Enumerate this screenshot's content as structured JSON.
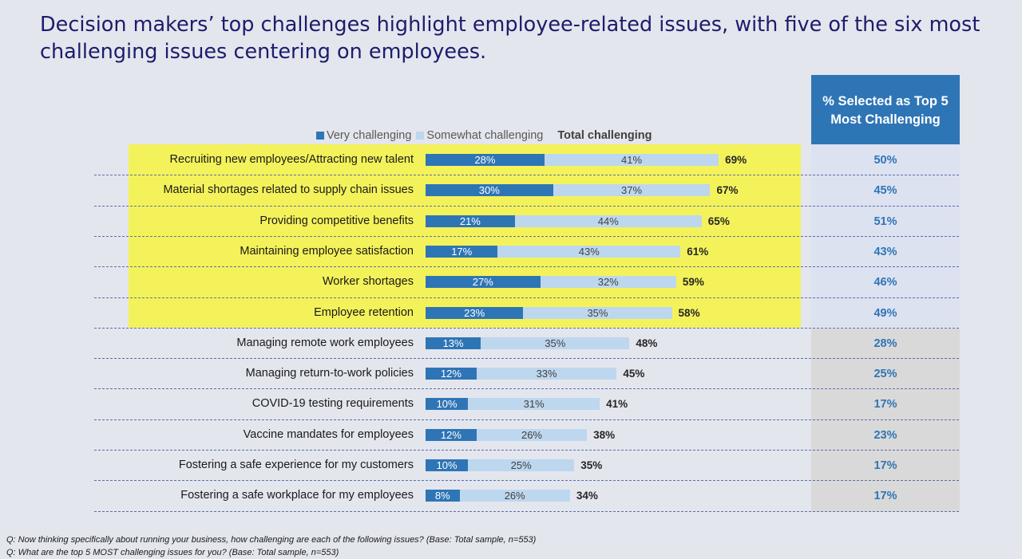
{
  "title": "Decision makers’ top challenges highlight employee-related issues, with five of the six most challenging issues centering on employees.",
  "right_header": "% Selected as Top 5\nMost Challenging",
  "colors": {
    "very": "#2e75b6",
    "somewhat": "#bdd7ee",
    "highlight": "#f4f25a",
    "title": "#1c1c6b",
    "accent": "#2e75b6"
  },
  "footnotes": {
    "q1": "Q:  Now thinking specifically about running your business, how challenging are each of the following issues? (Base: Total sample, n=553)",
    "q2": "Q: What are the top 5 MOST challenging issues for you? (Base: Total sample, n=553)"
  },
  "chart_data": {
    "type": "bar",
    "orientation": "horizontal",
    "stacked": true,
    "legend": [
      "Very challenging",
      "Somewhat challenging",
      "Total challenging"
    ],
    "legend_position": "top",
    "categories": [
      "Recruiting new employees/Attracting new talent",
      "Material shortages related to supply chain issues",
      "Providing competitive benefits",
      "Maintaining employee satisfaction",
      "Worker shortages",
      "Employee retention",
      "Managing remote work employees",
      "Managing return-to-work policies",
      "COVID-19 testing requirements",
      "Vaccine mandates for employees",
      "Fostering a safe experience for my customers",
      "Fostering a safe workplace for my employees"
    ],
    "series": [
      {
        "name": "Very challenging",
        "values": [
          28,
          30,
          21,
          17,
          27,
          23,
          13,
          12,
          10,
          12,
          10,
          8
        ]
      },
      {
        "name": "Somewhat challenging",
        "values": [
          41,
          37,
          44,
          43,
          32,
          35,
          35,
          33,
          31,
          26,
          25,
          26
        ]
      }
    ],
    "totals": [
      69,
      67,
      65,
      61,
      59,
      58,
      48,
      45,
      41,
      38,
      35,
      34
    ],
    "top5_selected": [
      50,
      45,
      51,
      43,
      46,
      49,
      28,
      25,
      17,
      23,
      17,
      17
    ],
    "highlighted_rows": [
      0,
      1,
      2,
      3,
      4,
      5
    ],
    "unit": "%"
  }
}
